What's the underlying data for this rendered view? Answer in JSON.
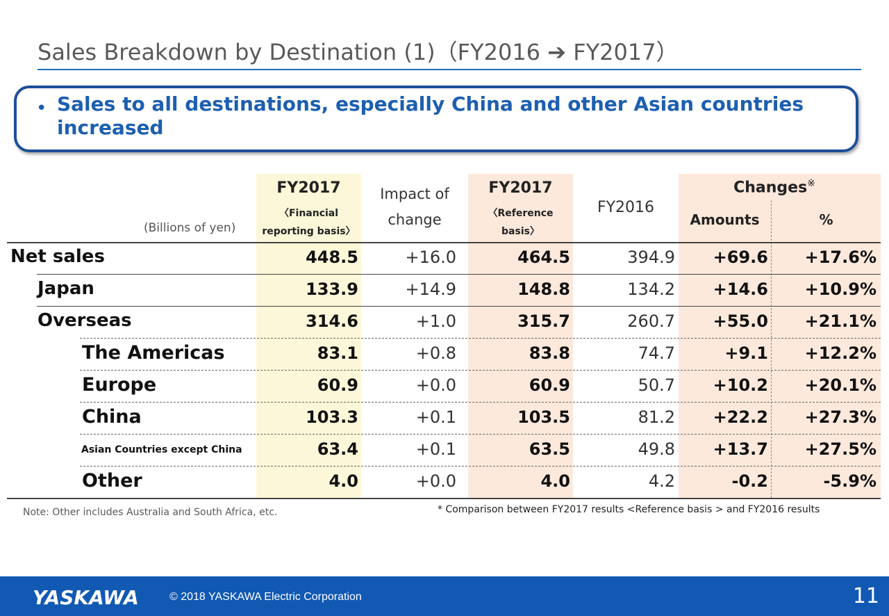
{
  "title": "Sales Breakdown by Destination (1)（FY2016 ➔ FY2017）",
  "bullet": "Sales to all destinations, especially China and other Asian countries increased",
  "header": {
    "units": "(Billions of yen)",
    "fy2017_fin_title": "FY2017",
    "fy2017_fin_sub1": "〈Financial",
    "fy2017_fin_sub2": "reporting basis〉",
    "impact_1": "Impact of",
    "impact_2": "change",
    "fy2017_ref_title": "FY2017",
    "fy2017_ref_sub1": "〈Reference",
    "fy2017_ref_sub2": "basis〉",
    "fy2016": "FY2016",
    "changes": "Changes",
    "changes_mark": "※",
    "amounts": "Amounts",
    "percent": "%"
  },
  "rows": [
    {
      "label": "Net sales",
      "fin": "448.5",
      "impact": "+16.0",
      "ref": "464.5",
      "fy16": "394.9",
      "amt": "+69.6",
      "pct": "+17.6%"
    },
    {
      "label": "Japan",
      "fin": "133.9",
      "impact": "+14.9",
      "ref": "148.8",
      "fy16": "134.2",
      "amt": "+14.6",
      "pct": "+10.9%"
    },
    {
      "label": "Overseas",
      "fin": "314.6",
      "impact": "+1.0",
      "ref": "315.7",
      "fy16": "260.7",
      "amt": "+55.0",
      "pct": "+21.1%"
    },
    {
      "label": "The Americas",
      "fin": "83.1",
      "impact": "+0.8",
      "ref": "83.8",
      "fy16": "74.7",
      "amt": "+9.1",
      "pct": "+12.2%"
    },
    {
      "label": "Europe",
      "fin": "60.9",
      "impact": "+0.0",
      "ref": "60.9",
      "fy16": "50.7",
      "amt": "+10.2",
      "pct": "+20.1%"
    },
    {
      "label": "China",
      "fin": "103.3",
      "impact": "+0.1",
      "ref": "103.5",
      "fy16": "81.2",
      "amt": "+22.2",
      "pct": "+27.3%"
    },
    {
      "label": "Asian Countries except China",
      "fin": "63.4",
      "impact": "+0.1",
      "ref": "63.5",
      "fy16": "49.8",
      "amt": "+13.7",
      "pct": "+27.5%"
    },
    {
      "label": "Other",
      "fin": "4.0",
      "impact": "+0.0",
      "ref": "4.0",
      "fy16": "4.2",
      "amt": "-0.2",
      "pct": "-5.9%"
    }
  ],
  "note_left": "Note: Other includes Australia and South Africa, etc.",
  "note_right": "* Comparison between FY2017 results <Reference basis > and FY2016 results",
  "footer": {
    "logo": "YASKAWA",
    "copyright": "© 2018 YASKAWA Electric Corporation",
    "page": "11"
  }
}
